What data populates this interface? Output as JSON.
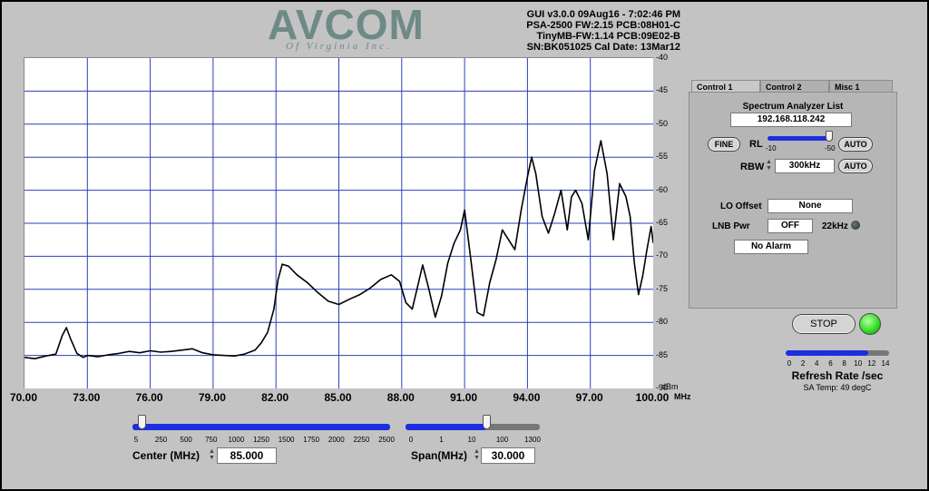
{
  "header": {
    "logo": "AVCOM",
    "logo_sub": "Of Virginia Inc.",
    "info_lines": [
      "GUI v3.0.0  09Aug16 - 7:02:46 PM",
      "PSA-2500 FW:2.15 PCB:08H01-C",
      "TinyMB-FW:1.14  PCB:09E02-B",
      "SN:BK051025  Cal Date: 13Mar12"
    ]
  },
  "chart_data": {
    "type": "line",
    "xlabel": "MHz",
    "ylabel": "dBm",
    "xlim": [
      70,
      100
    ],
    "ylim": [
      -90,
      -40
    ],
    "x_ticks": [
      "70.00",
      "73.00",
      "76.00",
      "79.00",
      "82.00",
      "85.00",
      "88.00",
      "91.00",
      "94.00",
      "97.00",
      "100.00"
    ],
    "y_ticks": [
      "-40",
      "-45",
      "-50",
      "-55",
      "-60",
      "-65",
      "-70",
      "-75",
      "-80",
      "-85",
      "-90"
    ],
    "grid": true,
    "series": [
      {
        "x": [
          70.0,
          70.5,
          71.0,
          71.5,
          71.8,
          72.0,
          72.2,
          72.5,
          72.8,
          73.0,
          73.5,
          74.0,
          74.5,
          75.0,
          75.5,
          76.0,
          76.5,
          77.0,
          77.5,
          78.0,
          78.5,
          79.0,
          79.5,
          80.0,
          80.5,
          81.0,
          81.3,
          81.6,
          81.9,
          82.1,
          82.3,
          82.6,
          83.0,
          83.5,
          84.0,
          84.5,
          85.0,
          85.5,
          86.0,
          86.5,
          87.0,
          87.5,
          87.9,
          88.2,
          88.5,
          88.8,
          89.0,
          89.3,
          89.6,
          89.9,
          90.2,
          90.5,
          90.8,
          91.0,
          91.3,
          91.6,
          91.9,
          92.2,
          92.5,
          92.8,
          93.1,
          93.4,
          93.7,
          94.0,
          94.2,
          94.4,
          94.7,
          95.0,
          95.3,
          95.6,
          95.9,
          96.1,
          96.3,
          96.6,
          96.9,
          97.2,
          97.5,
          97.8,
          98.1,
          98.4,
          98.7,
          98.9,
          99.1,
          99.3,
          99.5,
          99.7,
          99.9,
          100.0
        ],
        "y": [
          -85.3,
          -85.5,
          -85.1,
          -84.8,
          -82.0,
          -80.8,
          -82.5,
          -84.7,
          -85.3,
          -85.0,
          -85.2,
          -84.9,
          -84.7,
          -84.4,
          -84.6,
          -84.3,
          -84.5,
          -84.4,
          -84.2,
          -84.0,
          -84.6,
          -84.9,
          -85.0,
          -85.1,
          -84.8,
          -84.2,
          -83.1,
          -81.5,
          -78.0,
          -73.5,
          -71.2,
          -71.5,
          -72.8,
          -74.0,
          -75.5,
          -76.8,
          -77.3,
          -76.5,
          -75.8,
          -74.8,
          -73.5,
          -72.8,
          -73.8,
          -77.0,
          -78.0,
          -74.0,
          -71.3,
          -75.0,
          -79.2,
          -76.0,
          -71.0,
          -68.0,
          -66.0,
          -63.0,
          -70.5,
          -78.5,
          -79.0,
          -74.0,
          -70.5,
          -66.0,
          -67.5,
          -69.0,
          -63.0,
          -58.0,
          -55.0,
          -57.5,
          -64.0,
          -66.5,
          -63.5,
          -60.0,
          -66.0,
          -61.0,
          -60.0,
          -62.0,
          -67.5,
          -57.0,
          -52.5,
          -57.5,
          -67.5,
          -59.0,
          -61.0,
          -64.0,
          -71.0,
          -75.8,
          -73.0,
          -69.0,
          -65.5,
          -68.0
        ]
      }
    ]
  },
  "tabs": [
    "Control 1",
    "Control 2",
    "Misc 1"
  ],
  "control": {
    "list_title": "Spectrum Analyzer List",
    "ip": "192.168.118.242",
    "fine_label": "FINE",
    "rl_label": "RL",
    "rl_min": "-10",
    "rl_max": "-50",
    "auto_label": "AUTO",
    "rbw_label": "RBW",
    "rbw_value": "300kHz",
    "lo_label": "LO Offset",
    "lo_value": "None",
    "lnb_label": "LNB Pwr",
    "lnb_value": "OFF",
    "khz_label": "22kHz",
    "alarm": "No Alarm"
  },
  "stop_label": "STOP",
  "refresh": {
    "ticks": [
      "0",
      "2",
      "4",
      "6",
      "8",
      "10",
      "12",
      "14"
    ],
    "label": "Refresh Rate /sec",
    "temp": "SA Temp: 49 degC",
    "level_fraction": 0.8
  },
  "center": {
    "ticks": [
      "5",
      "250",
      "500",
      "750",
      "1000",
      "1250",
      "1500",
      "1750",
      "2000",
      "2250",
      "2500"
    ],
    "label": "Center (MHz)",
    "value": "85.000",
    "level_fraction": 0.0
  },
  "span": {
    "ticks": [
      "0",
      "1",
      "10",
      "100",
      "1300"
    ],
    "label": "Span(MHz)",
    "value": "30.000",
    "level_fraction": 0.6
  },
  "colors": {
    "trace": "#000000",
    "grid": "#2d3eb8",
    "slider_blue": "#1b2fe0",
    "led_green": "#35e02a"
  }
}
